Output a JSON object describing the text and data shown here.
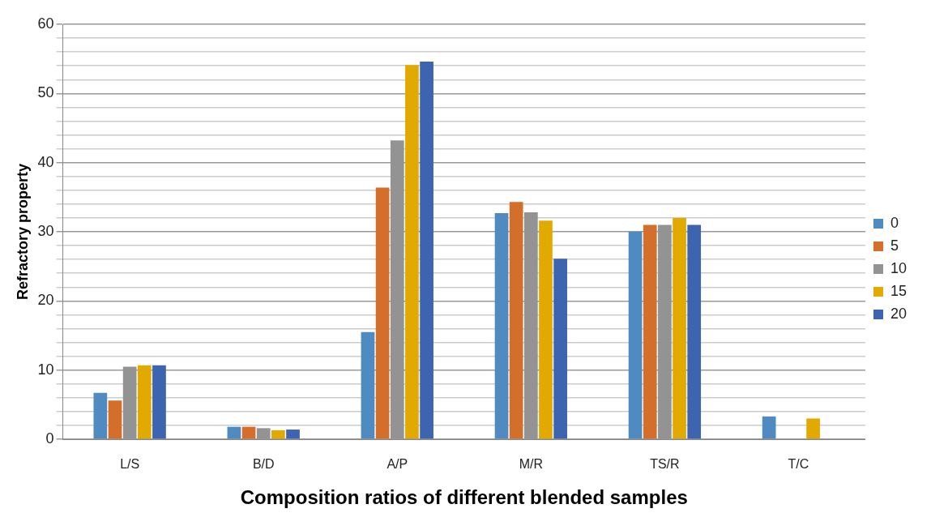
{
  "chart_data": {
    "type": "bar",
    "xlabel": "Composition ratios of different blended samples",
    "ylabel": "Refractory property",
    "categories": [
      "L/S",
      "B/D",
      "A/P",
      "M/R",
      "TS/R",
      "T/C"
    ],
    "series": [
      {
        "name": "0",
        "color": "#4f8bc0",
        "values": [
          6.7,
          1.8,
          15.5,
          32.7,
          30.0,
          3.3
        ]
      },
      {
        "name": "5",
        "color": "#d46e2b",
        "values": [
          5.6,
          1.8,
          36.4,
          34.3,
          31.0,
          null
        ]
      },
      {
        "name": "10",
        "color": "#939393",
        "values": [
          10.5,
          1.6,
          43.2,
          32.8,
          31.0,
          null
        ]
      },
      {
        "name": "15",
        "color": "#e2aa00",
        "values": [
          10.7,
          1.3,
          54.1,
          31.6,
          32.0,
          3.0
        ]
      },
      {
        "name": "20",
        "color": "#3d64ae",
        "values": [
          10.7,
          1.4,
          54.6,
          26.1,
          31.0,
          null
        ]
      }
    ],
    "ylim": [
      0,
      60
    ],
    "yticks": [
      0,
      {
        "value": 2,
        "label": null
      },
      {
        "value": 4,
        "label": null
      },
      {
        "value": 6,
        "label": null
      },
      {
        "value": 8,
        "label": null
      },
      10,
      {
        "value": 12,
        "label": null
      },
      {
        "value": 14,
        "label": null
      },
      {
        "value": 16,
        "label": null
      },
      {
        "value": 18,
        "label": null
      },
      20,
      {
        "value": 22,
        "label": null
      },
      {
        "value": 24,
        "label": null
      },
      {
        "value": 26,
        "label": null
      },
      {
        "value": 28,
        "label": null
      },
      30,
      {
        "value": 32,
        "label": null
      },
      {
        "value": 34,
        "label": null
      },
      {
        "value": 36,
        "label": null
      },
      {
        "value": 38,
        "label": null
      },
      40,
      {
        "value": 42,
        "label": null
      },
      {
        "value": 44,
        "label": null
      },
      {
        "value": 46,
        "label": null
      },
      {
        "value": 48,
        "label": null
      },
      50,
      {
        "value": 52,
        "label": null
      },
      {
        "value": 54,
        "label": null
      },
      {
        "value": 56,
        "label": null
      },
      {
        "value": 58,
        "label": null
      },
      60
    ],
    "grid": "y",
    "legend": "right"
  }
}
